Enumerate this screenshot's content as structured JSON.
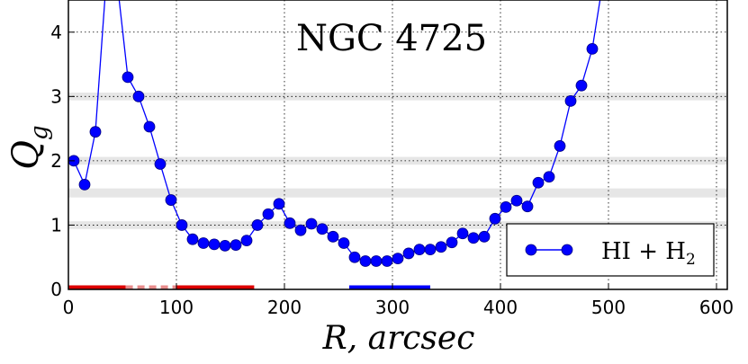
{
  "chart_data": {
    "type": "line",
    "title": "NGC 4725",
    "xlabel": "R, arcsec",
    "ylabel": "Q",
    "ylabel_sub": "g",
    "xlim": [
      0,
      610
    ],
    "ylim": [
      0,
      4.5
    ],
    "xticks": [
      0,
      100,
      200,
      300,
      400,
      500,
      600
    ],
    "yticks": [
      0,
      1,
      2,
      3,
      4
    ],
    "grid": true,
    "legend": "bottom-right",
    "series": [
      {
        "name": "HI + H",
        "name_sub": "2",
        "color": "#0000ff",
        "x": [
          5,
          15,
          25,
          35,
          45,
          55,
          65,
          75,
          85,
          95,
          105,
          115,
          125,
          135,
          145,
          155,
          165,
          175,
          185,
          195,
          205,
          215,
          225,
          235,
          245,
          255,
          265,
          275,
          285,
          295,
          305,
          315,
          325,
          335,
          345,
          355,
          365,
          375,
          385,
          395,
          405,
          415,
          425,
          435,
          445,
          455,
          465,
          475,
          485,
          495
        ],
        "y": [
          2.0,
          1.63,
          2.45,
          4.8,
          4.8,
          3.3,
          3.0,
          2.53,
          1.95,
          1.39,
          1.0,
          0.78,
          0.72,
          0.7,
          0.68,
          0.69,
          0.76,
          1.0,
          1.17,
          1.33,
          1.03,
          0.92,
          1.02,
          0.94,
          0.82,
          0.72,
          0.5,
          0.44,
          0.44,
          0.44,
          0.48,
          0.56,
          0.62,
          0.62,
          0.66,
          0.73,
          0.87,
          0.8,
          0.82,
          1.1,
          1.28,
          1.38,
          1.29,
          1.66,
          1.75,
          2.23,
          2.93,
          3.17,
          3.74,
          4.8
        ],
        "markers": [
          1,
          1,
          1,
          0,
          0,
          1,
          1,
          1,
          1,
          1,
          1,
          1,
          1,
          1,
          1,
          1,
          1,
          1,
          1,
          1,
          1,
          1,
          1,
          1,
          1,
          1,
          1,
          1,
          1,
          1,
          1,
          1,
          1,
          1,
          1,
          1,
          1,
          1,
          1,
          1,
          1,
          1,
          1,
          1,
          1,
          1,
          1,
          1,
          1,
          0
        ]
      }
    ],
    "bands": [
      {
        "y": 3.0,
        "half_width": 0.06
      },
      {
        "y": 2.0,
        "half_width": 0.06
      },
      {
        "y": 1.5,
        "half_width": 0.07
      },
      {
        "y": 1.0,
        "half_width": 0.06
      }
    ],
    "segments": [
      {
        "x0": 0,
        "x1": 53,
        "color": "#dd0000",
        "style": "solid"
      },
      {
        "x0": 53,
        "x1": 100,
        "color": "#e88c8c",
        "style": "dashed"
      },
      {
        "x0": 100,
        "x1": 172,
        "color": "#dd0000",
        "style": "solid"
      },
      {
        "x0": 260,
        "x1": 335,
        "color": "#0000ff",
        "style": "solid"
      }
    ]
  }
}
